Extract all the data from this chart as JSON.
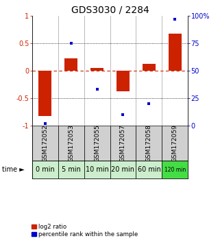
{
  "title": "GDS3030 / 2284",
  "samples": [
    "GSM172052",
    "GSM172053",
    "GSM172055",
    "GSM172057",
    "GSM172058",
    "GSM172059"
  ],
  "time_labels": [
    "0 min",
    "5 min",
    "10 min",
    "20 min",
    "60 min",
    "120 min"
  ],
  "log2_ratio": [
    -0.82,
    0.22,
    0.05,
    -0.38,
    0.13,
    0.68
  ],
  "percentile_rank": [
    2,
    75,
    33,
    10,
    20,
    97
  ],
  "bar_color_red": "#cc2200",
  "bar_color_blue": "#0000cc",
  "ylim_left": [
    -1,
    1
  ],
  "ylim_right": [
    0,
    100
  ],
  "yticks_left": [
    -1,
    -0.5,
    0,
    0.5,
    1
  ],
  "yticks_right": [
    0,
    25,
    50,
    75,
    100
  ],
  "ytick_labels_left": [
    "-1",
    "-0.5",
    "0",
    "0.5",
    "1"
  ],
  "ytick_labels_right": [
    "0",
    "25",
    "50",
    "75",
    "100%"
  ],
  "dotted_lines": [
    -0.5,
    0.5
  ],
  "bg_color_samples": "#d0d0d0",
  "time_bg_colors": [
    "#cceecc",
    "#cceecc",
    "#cceecc",
    "#cceecc",
    "#cceecc",
    "#44dd44"
  ],
  "legend_red_label": "log2 ratio",
  "legend_blue_label": "percentile rank within the sample",
  "title_fontsize": 10,
  "tick_fontsize": 7,
  "sample_fontsize": 6.5,
  "time_fontsize": 7
}
